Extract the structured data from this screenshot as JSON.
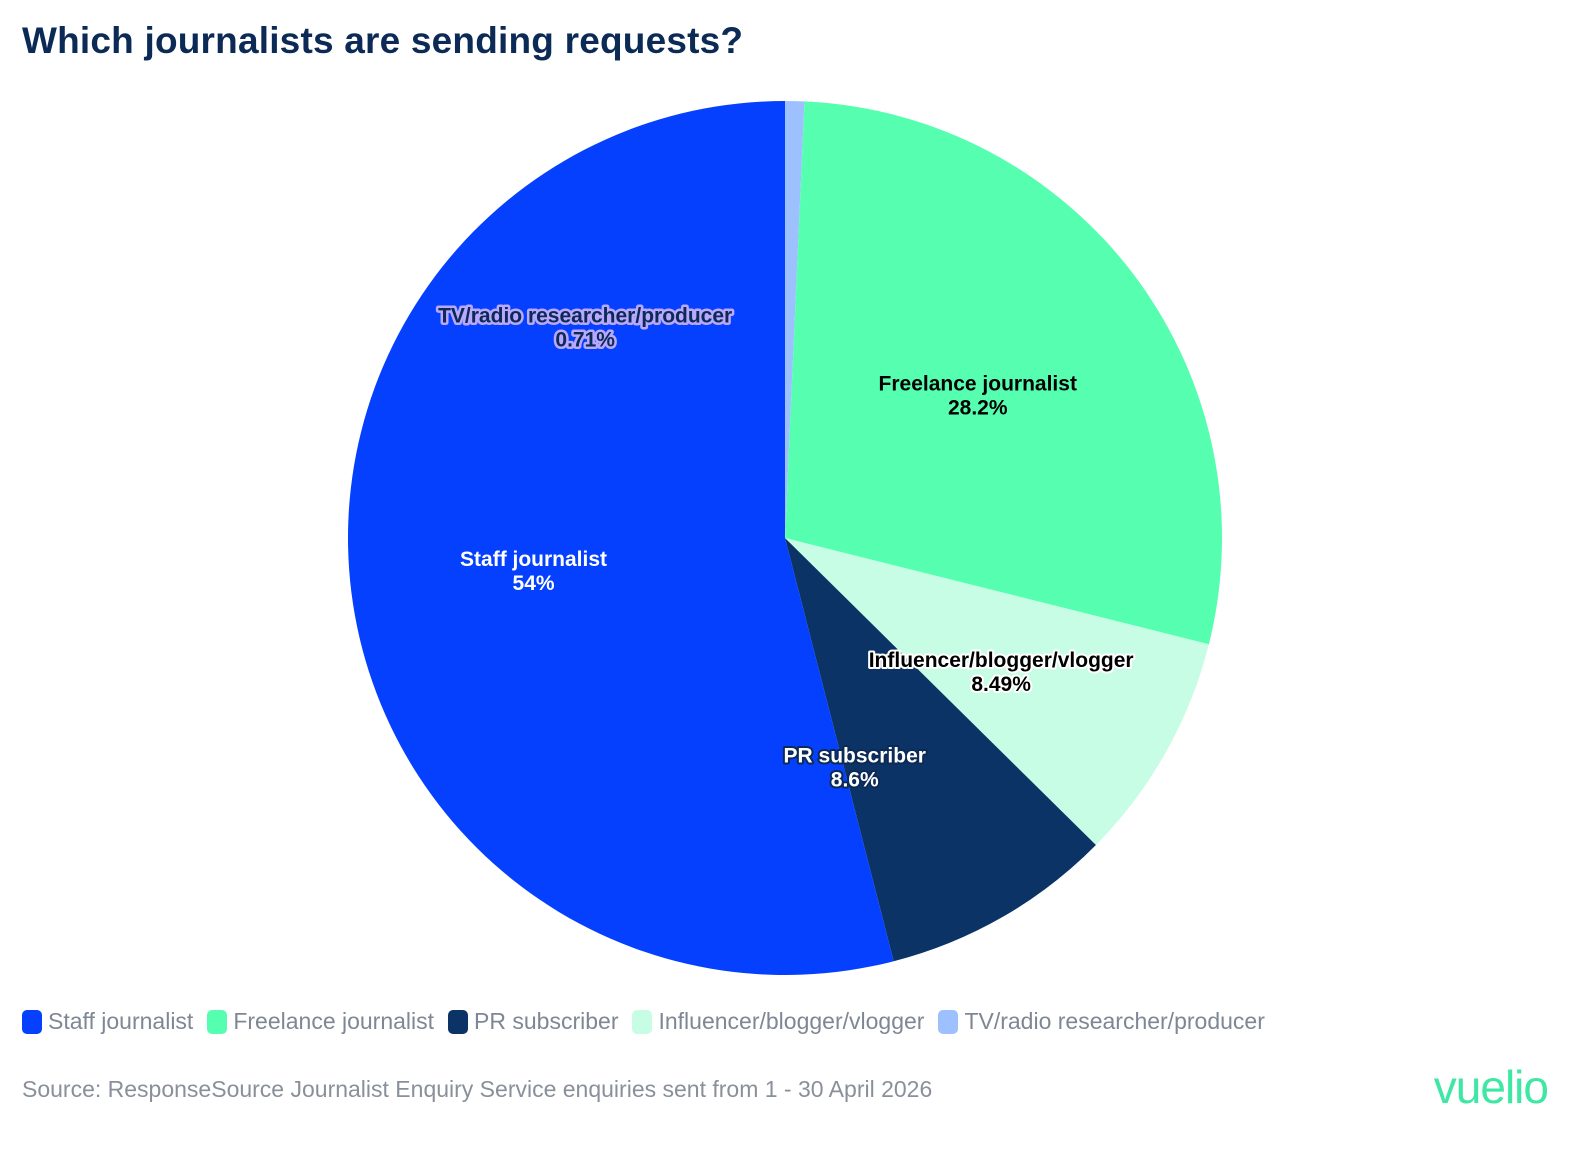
{
  "title": "Which journalists are sending requests?",
  "chart_data": {
    "type": "pie",
    "title": "Which journalists are sending requests?",
    "slices": [
      {
        "label": "TV/radio researcher/producer",
        "value": 0.71,
        "display": "0.71%",
        "color": "#9dc1ff"
      },
      {
        "label": "Freelance journalist",
        "value": 28.2,
        "display": "28.2%",
        "color": "#56ffb0"
      },
      {
        "label": "Influencer/blogger/vlogger",
        "value": 8.49,
        "display": "8.49%",
        "color": "#c8fde5"
      },
      {
        "label": "PR subscriber",
        "value": 8.6,
        "display": "8.6%",
        "color": "#0b3366"
      },
      {
        "label": "Staff journalist",
        "value": 54,
        "display": "54%",
        "color": "#0540ff"
      }
    ],
    "legend_position": "bottom",
    "legend": [
      {
        "label": "Staff journalist",
        "color": "#0540ff"
      },
      {
        "label": "Freelance journalist",
        "color": "#56ffb0"
      },
      {
        "label": "PR subscriber",
        "color": "#0b3366"
      },
      {
        "label": "Influencer/blogger/vlogger",
        "color": "#c8fde5"
      },
      {
        "label": "TV/radio researcher/producer",
        "color": "#9dc1ff"
      }
    ]
  },
  "footer": {
    "source": "Source: ResponseSource Journalist Enquiry Service enquiries sent from 1 - 30 April 2026",
    "logo": "vuelio"
  }
}
